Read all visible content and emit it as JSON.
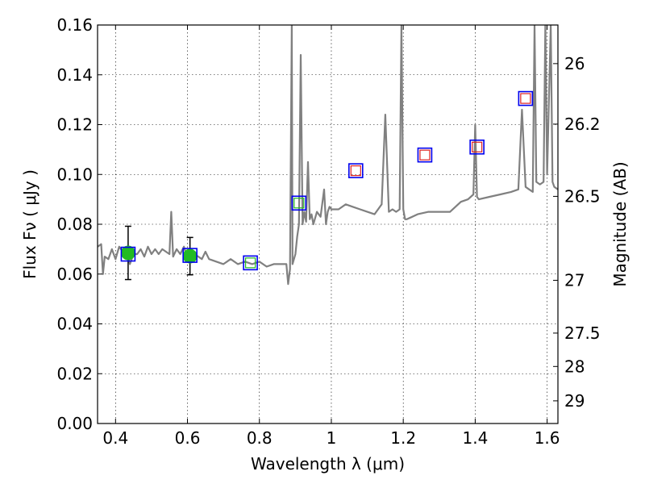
{
  "chart_data": {
    "type": "scatter",
    "xlabel": "Wavelength  λ (μm)",
    "ylabel": "Flux  Fν  ( μJy )",
    "ylabel_right": "Magnitude (AB)",
    "xlim": [
      0.35,
      1.63
    ],
    "ylim": [
      0,
      0.16
    ],
    "grid": true,
    "x_ticks": [
      0.4,
      0.6,
      0.8,
      1.0,
      1.2,
      1.4,
      1.6
    ],
    "x_tick_labels": [
      "0.4",
      "0.6",
      "0.8",
      "1",
      "1.2",
      "1.4",
      "1.6"
    ],
    "y_ticks": [
      0,
      0.02,
      0.04,
      0.06,
      0.08,
      0.1,
      0.12,
      0.14,
      0.16
    ],
    "y_tick_labels": [
      "0.00",
      "0.02",
      "0.04",
      "0.06",
      "0.08",
      "0.10",
      "0.12",
      "0.14",
      "0.16"
    ],
    "right_ticks": [
      {
        "label": "26",
        "flux": 0.1445
      },
      {
        "label": "26.2",
        "flux": 0.1202
      },
      {
        "label": "26.5",
        "flux": 0.0912
      },
      {
        "label": "27",
        "flux": 0.0575
      },
      {
        "label": "27.5",
        "flux": 0.0363
      },
      {
        "label": "28",
        "flux": 0.0229
      },
      {
        "label": "29",
        "flux": 0.0091
      }
    ],
    "series": [
      {
        "style": "spectrum",
        "color": "#808080",
        "x": [
          0.35,
          0.36,
          0.365,
          0.37,
          0.38,
          0.39,
          0.4,
          0.41,
          0.42,
          0.43,
          0.44,
          0.45,
          0.46,
          0.47,
          0.48,
          0.49,
          0.5,
          0.51,
          0.52,
          0.53,
          0.54,
          0.55,
          0.555,
          0.56,
          0.57,
          0.58,
          0.59,
          0.6,
          0.62,
          0.64,
          0.65,
          0.66,
          0.68,
          0.7,
          0.72,
          0.74,
          0.76,
          0.78,
          0.8,
          0.82,
          0.84,
          0.86,
          0.875,
          0.88,
          0.885,
          0.89,
          0.892,
          0.9,
          0.905,
          0.91,
          0.915,
          0.92,
          0.925,
          0.93,
          0.935,
          0.94,
          0.945,
          0.95,
          0.96,
          0.97,
          0.98,
          0.985,
          0.99,
          0.995,
          1.0,
          1.02,
          1.04,
          1.06,
          1.08,
          1.1,
          1.12,
          1.14,
          1.15,
          1.16,
          1.17,
          1.18,
          1.19,
          1.195,
          1.2,
          1.205,
          1.21,
          1.24,
          1.27,
          1.3,
          1.33,
          1.36,
          1.38,
          1.395,
          1.4,
          1.405,
          1.41,
          1.44,
          1.47,
          1.5,
          1.52,
          1.53,
          1.54,
          1.55,
          1.56,
          1.565,
          1.57,
          1.58,
          1.59,
          1.595,
          1.6,
          1.61,
          1.615,
          1.62,
          1.63
        ],
        "y": [
          0.071,
          0.072,
          0.06,
          0.067,
          0.066,
          0.07,
          0.066,
          0.071,
          0.069,
          0.07,
          0.064,
          0.068,
          0.068,
          0.07,
          0.067,
          0.071,
          0.068,
          0.07,
          0.068,
          0.07,
          0.069,
          0.068,
          0.085,
          0.067,
          0.07,
          0.068,
          0.071,
          0.066,
          0.068,
          0.066,
          0.069,
          0.066,
          0.065,
          0.064,
          0.066,
          0.064,
          0.065,
          0.064,
          0.065,
          0.063,
          0.064,
          0.064,
          0.064,
          0.056,
          0.062,
          0.16,
          0.064,
          0.068,
          0.075,
          0.08,
          0.148,
          0.08,
          0.085,
          0.081,
          0.105,
          0.082,
          0.084,
          0.08,
          0.085,
          0.083,
          0.094,
          0.08,
          0.085,
          0.087,
          0.086,
          0.086,
          0.088,
          0.087,
          0.086,
          0.085,
          0.084,
          0.088,
          0.124,
          0.085,
          0.086,
          0.085,
          0.086,
          0.16,
          0.086,
          0.082,
          0.082,
          0.084,
          0.085,
          0.085,
          0.085,
          0.089,
          0.09,
          0.092,
          0.12,
          0.091,
          0.09,
          0.091,
          0.092,
          0.093,
          0.094,
          0.126,
          0.095,
          0.094,
          0.093,
          0.16,
          0.097,
          0.096,
          0.097,
          0.16,
          0.1,
          0.16,
          0.097,
          0.095,
          0.094
        ]
      },
      {
        "style": "observed",
        "color": "#22bb22",
        "x": [
          0.435,
          0.607
        ],
        "y": [
          0.0685,
          0.0672
        ],
        "err": [
          0.0107,
          0.0075
        ]
      },
      {
        "style": "model-blue",
        "color": "#0000ee",
        "x": [
          0.435,
          0.607,
          0.775,
          0.91,
          1.068,
          1.26,
          1.405,
          1.54
        ],
        "y": [
          0.068,
          0.0675,
          0.0645,
          0.0885,
          0.1015,
          0.1078,
          0.111,
          0.1305
        ]
      },
      {
        "style": "model-green",
        "color": "#22bb22",
        "x": [
          0.775,
          0.91
        ],
        "y": [
          0.0645,
          0.0885
        ]
      },
      {
        "style": "model-red",
        "color": "#dd2222",
        "x": [
          1.068,
          1.26,
          1.405,
          1.54
        ],
        "y": [
          0.1015,
          0.1078,
          0.111,
          0.1305
        ]
      }
    ]
  }
}
